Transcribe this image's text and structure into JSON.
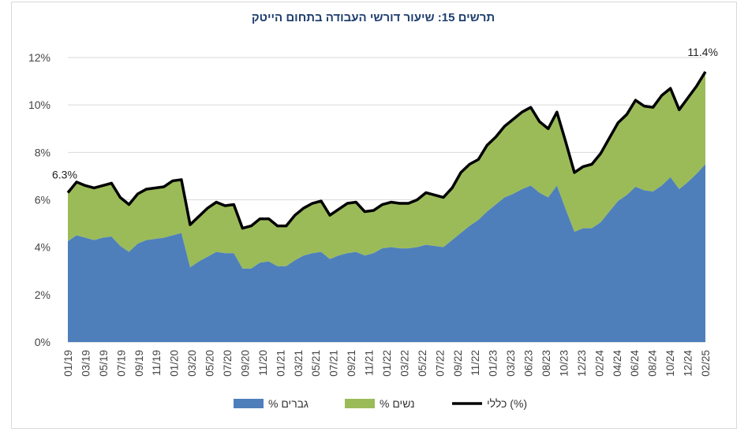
{
  "chart_data": {
    "type": "area",
    "title": "תרשים 15: שיעור דורשי העבודה בתחום הייטק",
    "xlabel": "",
    "ylabel": "",
    "ylim": [
      0,
      12
    ],
    "yticks": [
      "0%",
      "2%",
      "4%",
      "6%",
      "8%",
      "10%",
      "12%"
    ],
    "grid": true,
    "legend_position": "bottom",
    "x_tick_labels": [
      "01/19",
      "03/19",
      "05/19",
      "07/19",
      "09/19",
      "11/19",
      "01/20",
      "03/20",
      "05/20",
      "07/20",
      "09/20",
      "11/20",
      "01/21",
      "03/21",
      "05/21",
      "07/21",
      "09/21",
      "11/21",
      "01/22",
      "03/22",
      "05/22",
      "07/22",
      "09/22",
      "11/22",
      "01/23",
      "03/23",
      "06/23",
      "08/23",
      "10/23",
      "12/23",
      "02/24",
      "04/24",
      "06/24",
      "08/24",
      "10/24",
      "12/24",
      "02/25"
    ],
    "series": [
      {
        "name": "% גברים",
        "color": "#4e7fbb",
        "values": [
          4.25,
          4.5,
          4.4,
          4.3,
          4.4,
          4.45,
          4.05,
          3.8,
          4.15,
          4.3,
          4.35,
          4.4,
          4.5,
          4.6,
          3.15,
          3.4,
          3.6,
          3.8,
          3.75,
          3.75,
          3.1,
          3.1,
          3.35,
          3.4,
          3.2,
          3.2,
          3.45,
          3.65,
          3.75,
          3.8,
          3.5,
          3.65,
          3.75,
          3.8,
          3.65,
          3.75,
          3.95,
          4.0,
          3.95,
          3.95,
          4.0,
          4.1,
          4.05,
          4.0,
          4.3,
          4.6,
          4.9,
          5.15,
          5.5,
          5.8,
          6.1,
          6.25,
          6.45,
          6.6,
          6.3,
          6.1,
          6.6,
          5.6,
          4.65,
          4.8,
          4.8,
          5.05,
          5.5,
          5.95,
          6.2,
          6.55,
          6.4,
          6.35,
          6.6,
          6.95,
          6.45,
          6.75,
          7.1,
          7.5
        ]
      },
      {
        "name": "% נשים",
        "color": "#9bbb59",
        "values": [
          2.05,
          2.25,
          2.2,
          2.2,
          2.2,
          2.25,
          2.05,
          2.0,
          2.1,
          2.15,
          2.15,
          2.15,
          2.3,
          2.25,
          1.8,
          1.9,
          2.05,
          2.1,
          2.0,
          2.05,
          1.7,
          1.8,
          1.85,
          1.8,
          1.7,
          1.7,
          1.9,
          2.0,
          2.1,
          2.15,
          1.85,
          1.95,
          2.1,
          2.1,
          1.85,
          1.8,
          1.85,
          1.9,
          1.9,
          1.9,
          2.0,
          2.2,
          2.15,
          2.1,
          2.2,
          2.55,
          2.6,
          2.55,
          2.8,
          2.85,
          3.0,
          3.15,
          3.25,
          3.3,
          3.0,
          2.9,
          3.1,
          2.85,
          2.5,
          2.6,
          2.7,
          2.9,
          3.1,
          3.3,
          3.4,
          3.65,
          3.55,
          3.55,
          3.8,
          3.75,
          3.35,
          3.55,
          3.7,
          3.9
        ]
      },
      {
        "name": "כללי (%)",
        "color": "#000000",
        "values": [
          6.3,
          6.75,
          6.6,
          6.5,
          6.6,
          6.7,
          6.1,
          5.8,
          6.25,
          6.45,
          6.5,
          6.55,
          6.8,
          6.85,
          4.95,
          5.3,
          5.65,
          5.9,
          5.75,
          5.8,
          4.8,
          4.9,
          5.2,
          5.2,
          4.9,
          4.9,
          5.35,
          5.65,
          5.85,
          5.95,
          5.35,
          5.6,
          5.85,
          5.9,
          5.5,
          5.55,
          5.8,
          5.9,
          5.85,
          5.85,
          6.0,
          6.3,
          6.2,
          6.1,
          6.5,
          7.15,
          7.5,
          7.7,
          8.3,
          8.65,
          9.1,
          9.4,
          9.7,
          9.9,
          9.3,
          9.0,
          9.7,
          8.45,
          7.15,
          7.4,
          7.5,
          7.95,
          8.6,
          9.25,
          9.6,
          10.2,
          9.95,
          9.9,
          10.4,
          10.7,
          9.8,
          10.3,
          10.8,
          11.4
        ]
      }
    ],
    "annotations": [
      "6.3%",
      "11.4%"
    ]
  }
}
